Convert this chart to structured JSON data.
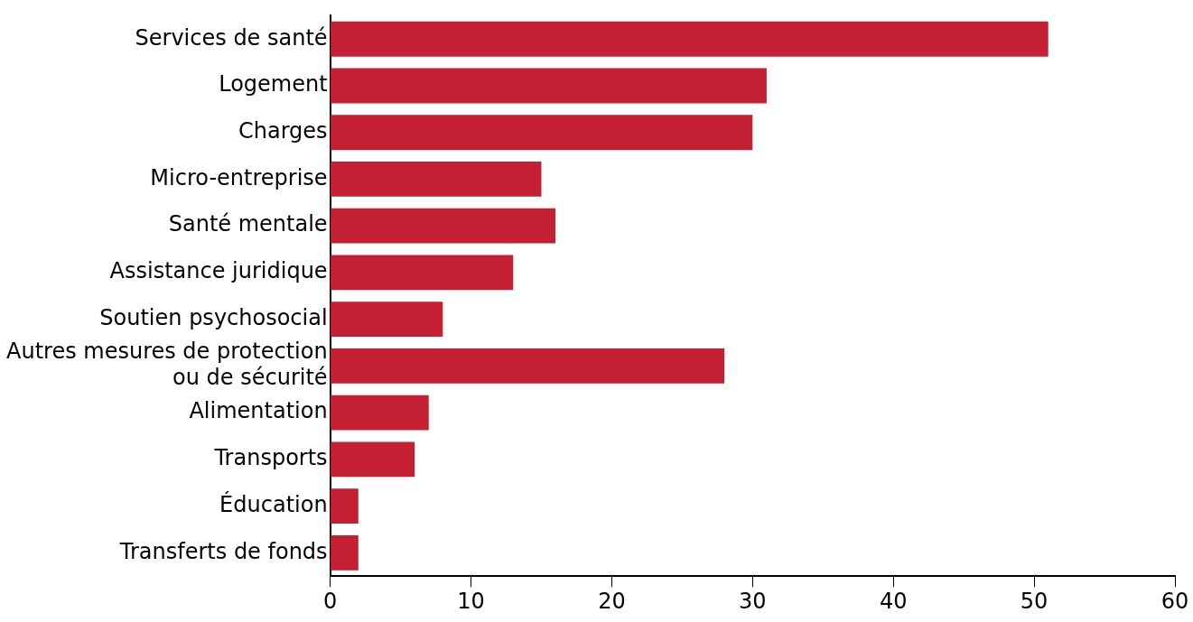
{
  "chart_data": {
    "type": "bar",
    "orientation": "horizontal",
    "categories": [
      "Services de santé",
      "Logement",
      "Charges",
      "Micro-entreprise",
      "Santé mentale",
      "Assistance juridique",
      "Soutien psychosocial",
      "Autres mesures de protection ou de sécurité",
      "Alimentation",
      "Transports",
      "Éducation",
      "Transferts de fonds"
    ],
    "values": [
      51,
      31,
      30,
      15,
      16,
      13,
      8,
      28,
      7,
      6,
      2,
      2
    ],
    "color": "#c41f33",
    "xlim": [
      0,
      60
    ],
    "xticks": [
      0,
      10,
      20,
      30,
      40,
      50,
      60
    ],
    "grid": false,
    "legend": false
  }
}
